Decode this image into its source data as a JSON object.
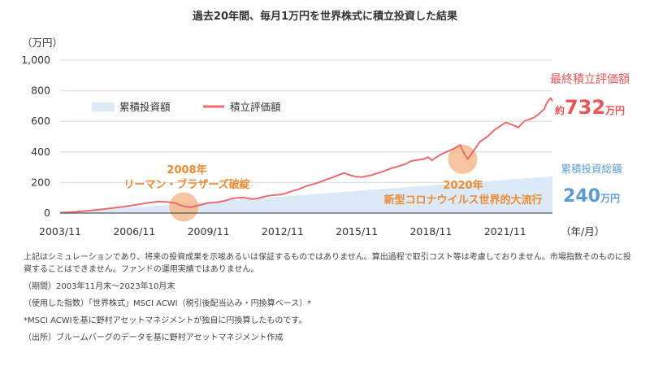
{
  "title": "過去20年間、毎月1万円を世界株式に積立投資した結果",
  "chart_data": {
    "type": "area",
    "y_unit_label": "（万円）",
    "x_unit_label": "（年/月）",
    "ylim": [
      0,
      1000
    ],
    "y_ticks": [
      "0",
      "200",
      "400",
      "600",
      "800",
      "1,000"
    ],
    "y_tick_values": [
      0,
      200,
      400,
      600,
      800,
      1000
    ],
    "x_ticks": [
      "2003/11",
      "2006/11",
      "2009/11",
      "2012/11",
      "2015/11",
      "2018/11",
      "2021/11"
    ],
    "x_tick_values": [
      2003.917,
      2006.917,
      2009.917,
      2012.917,
      2015.917,
      2018.917,
      2021.917
    ],
    "x_range": [
      2003.917,
      2023.833
    ],
    "grid": true,
    "legend_position": "top-left",
    "series": [
      {
        "name": "累積投資額",
        "kind": "area",
        "color": "#dce9f7",
        "x": [
          2003.917,
          2023.833
        ],
        "y": [
          1,
          240
        ]
      },
      {
        "name": "積立評価額",
        "kind": "line",
        "color": "#ec6b6e",
        "x": [
          2003.917,
          2004.5,
          2005.0,
          2005.5,
          2006.0,
          2006.5,
          2007.0,
          2007.5,
          2007.9,
          2008.3,
          2008.6,
          2008.8,
          2009.0,
          2009.2,
          2009.5,
          2009.9,
          2010.3,
          2010.6,
          2010.9,
          2011.3,
          2011.7,
          2011.9,
          2012.3,
          2012.6,
          2012.9,
          2013.3,
          2013.6,
          2013.9,
          2014.3,
          2014.6,
          2014.9,
          2015.4,
          2015.7,
          2015.9,
          2016.1,
          2016.5,
          2016.9,
          2017.3,
          2017.6,
          2017.9,
          2018.1,
          2018.3,
          2018.6,
          2018.8,
          2018.95,
          2019.3,
          2019.6,
          2019.9,
          2020.1,
          2020.2,
          2020.4,
          2020.7,
          2020.9,
          2021.2,
          2021.5,
          2021.8,
          2021.95,
          2022.2,
          2022.45,
          2022.7,
          2022.85,
          2023.1,
          2023.35,
          2023.5,
          2023.6,
          2023.75,
          2023.833
        ],
        "y": [
          2,
          8,
          15,
          23,
          32,
          42,
          55,
          68,
          76,
          72,
          65,
          50,
          42,
          37,
          50,
          66,
          72,
          82,
          96,
          102,
          92,
          96,
          112,
          118,
          122,
          144,
          158,
          178,
          196,
          214,
          232,
          262,
          245,
          238,
          235,
          248,
          268,
          292,
          306,
          322,
          340,
          346,
          352,
          366,
          346,
          382,
          404,
          426,
          446,
          408,
          352,
          420,
          468,
          500,
          546,
          578,
          592,
          578,
          560,
          602,
          610,
          626,
          658,
          680,
          720,
          752,
          732
        ]
      }
    ],
    "annotations": [
      {
        "lines": [
          "2008年",
          "リーマン・ブラザーズ破綻"
        ],
        "x": 2008.917,
        "y": 40
      },
      {
        "lines": [
          "2020年",
          "新型コロナウイルス世界的大流行"
        ],
        "x": 2020.2,
        "y": 352
      }
    ],
    "final_value": {
      "label": "最終積立評価額",
      "prefix": "約",
      "value": "732",
      "unit": "万円"
    },
    "total_invested": {
      "label": "累積投資総額",
      "value": "240",
      "unit": "万円"
    }
  },
  "notes": [
    "上記はシミュレーションであり、将来の投資成果を示唆あるいは保証するものではありません。算出過程で取引コスト等は考慮しておりません。市場指数そのものに投資することはできません。ファンドの運用実績ではありません。",
    "（期間）2003年11月末〜2023年10月末",
    "（使用した指数）「世界株式」MSCI ACWI（税引後配当込み・円換算ベース）*",
    "*MSCI ACWIを基に野村アセットマネジメントが独自に円換算したものです。",
    "（出所）ブルームバーグのデータを基に野村アセットマネジメント作成"
  ]
}
